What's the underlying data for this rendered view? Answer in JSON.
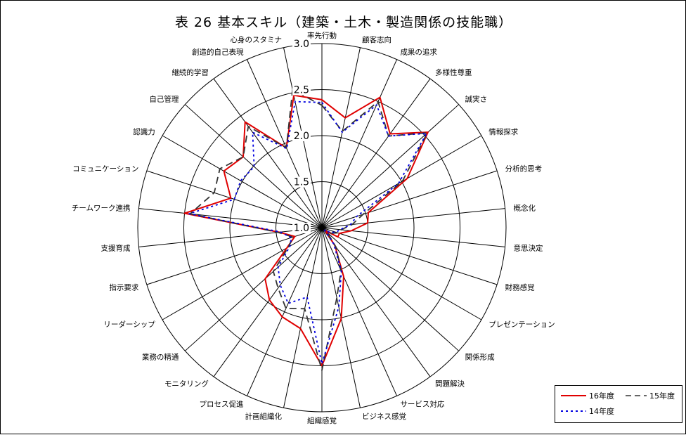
{
  "chart_data": {
    "type": "radar",
    "title": "表 26  基本スキル（建築・土木・製造関係の技能職）",
    "scale": {
      "min": 1.0,
      "max": 3.0,
      "ticks": [
        "1.0",
        "1.5",
        "2.0",
        "2.5",
        "3.0"
      ]
    },
    "categories": [
      "率先行動",
      "顧客志向",
      "成果の追求",
      "多様性尊重",
      "誠実さ",
      "情報探求",
      "分析的思考",
      "概念化",
      "意思決定",
      "財務感覚",
      "プレゼンテーション",
      "関係形成",
      "問題解決",
      "サービス対応",
      "ビジネス感覚",
      "組織感覚",
      "計画組織化",
      "プロセス促進",
      "モニタリング",
      "業務の精通",
      "リーダーシップ",
      "指示要求",
      "支援育成",
      "チームワーク連携",
      "コミュニケーション",
      "認識力",
      "自己管理",
      "継続的学習",
      "創造的自己表現",
      "心身のスタミナ"
    ],
    "series": [
      {
        "name": "16年度",
        "color": "#e00000",
        "dash": "",
        "values": [
          2.39,
          2.22,
          2.55,
          2.26,
          2.55,
          2.07,
          1.53,
          1.5,
          1.32,
          1.2,
          1.2,
          1.05,
          1.24,
          1.58,
          2.01,
          2.5,
          2.12,
          2.06,
          1.97,
          1.83,
          1.44,
          1.31,
          1.47,
          2.5,
          2.04,
          2.23,
          2.15,
          2.42,
          1.95,
          2.47
        ]
      },
      {
        "name": "15年度",
        "color": "#333333",
        "dash": "10,6",
        "values": [
          2.33,
          2.07,
          2.5,
          2.23,
          2.54,
          2.01,
          1.47,
          1.33,
          1.21,
          1.18,
          1.12,
          1.08,
          1.26,
          1.51,
          1.78,
          2.55,
          1.9,
          1.96,
          1.81,
          1.71,
          1.42,
          1.33,
          1.48,
          2.44,
          2.23,
          2.28,
          2.15,
          2.36,
          1.95,
          2.53
        ]
      },
      {
        "name": "14年度",
        "color": "#0000e0",
        "dash": "3,4",
        "values": [
          2.36,
          2.06,
          2.46,
          2.23,
          2.53,
          1.96,
          1.4,
          1.31,
          1.2,
          1.16,
          1.1,
          1.04,
          1.22,
          1.52,
          1.88,
          2.48,
          1.77,
          1.9,
          1.77,
          1.64,
          1.4,
          1.35,
          1.45,
          2.45,
          2.0,
          2.02,
          1.99,
          2.28,
          1.94,
          2.4
        ]
      }
    ]
  }
}
